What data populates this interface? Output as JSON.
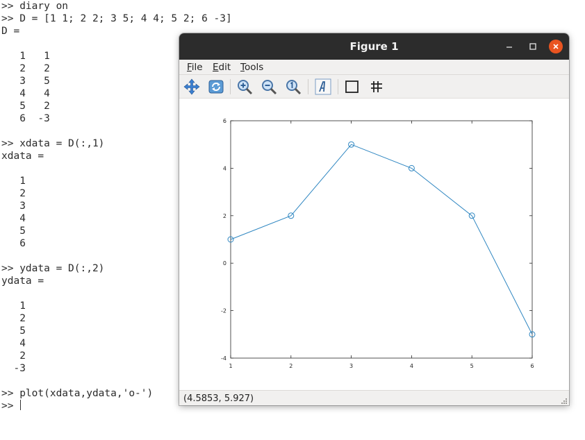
{
  "terminal": {
    "lines": [
      ">> diary on",
      ">> D = [1 1; 2 2; 3 5; 4 4; 5 2; 6 -3]",
      "D =",
      "",
      "   1   1",
      "   2   2",
      "   3   5",
      "   4   4",
      "   5   2",
      "   6  -3",
      "",
      ">> xdata = D(:,1)",
      "xdata =",
      "",
      "   1",
      "   2",
      "   3",
      "   4",
      "   5",
      "   6",
      "",
      ">> ydata = D(:,2)",
      "ydata =",
      "",
      "   1",
      "   2",
      "   5",
      "   4",
      "   2",
      "  -3",
      "",
      ">> plot(xdata,ydata,'o-')"
    ],
    "prompt": ">> "
  },
  "figure": {
    "title": "Figure 1",
    "menus": [
      "File",
      "Edit",
      "Tools"
    ],
    "toolbar_icons": [
      "pan-icon",
      "rotate-icon",
      "zoom-in-icon",
      "zoom-out-icon",
      "zoom-reset-icon",
      "text-insert-icon",
      "axes-box-icon",
      "grid-icon"
    ],
    "status": "(4.5853, 5.927)"
  },
  "colors": {
    "series": "#2e86c1",
    "titlebar": "#2c2c2c",
    "close_button": "#e95420"
  },
  "chart_data": {
    "type": "line",
    "x": [
      1,
      2,
      3,
      4,
      5,
      6
    ],
    "series": [
      {
        "values": [
          1,
          2,
          5,
          4,
          2,
          -3
        ],
        "marker": "circle"
      }
    ],
    "xlim": [
      1,
      6
    ],
    "ylim": [
      -4,
      6
    ],
    "xticks": [
      1,
      2,
      3,
      4,
      5,
      6
    ],
    "yticks": [
      -4,
      -2,
      0,
      2,
      4,
      6
    ],
    "title": "",
    "xlabel": "",
    "ylabel": "",
    "grid": false
  }
}
